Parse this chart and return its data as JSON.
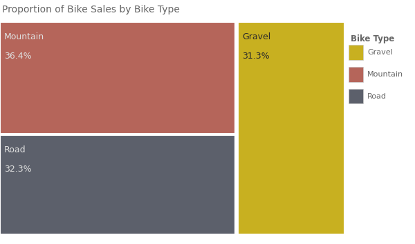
{
  "title": "Proportion of Bike Sales by Bike Type",
  "segments": [
    {
      "label": "Mountain",
      "pct": "36.4%",
      "color": "#b5655a",
      "value": 36.4
    },
    {
      "label": "Road",
      "pct": "32.3%",
      "color": "#5c606b",
      "value": 32.3
    },
    {
      "label": "Gravel",
      "pct": "31.3%",
      "color": "#c8b020",
      "value": 31.3
    }
  ],
  "legend_title": "Bike Type",
  "legend_order": [
    "Gravel",
    "Mountain",
    "Road"
  ],
  "title_fontsize": 10,
  "label_fontsize": 9,
  "pct_fontsize": 9,
  "text_color_light": "#e0e0e0",
  "text_color_dark": "#2a2a2a",
  "bg_color": "#ffffff",
  "title_color": "#666666",
  "legend_text_color": "#666666"
}
